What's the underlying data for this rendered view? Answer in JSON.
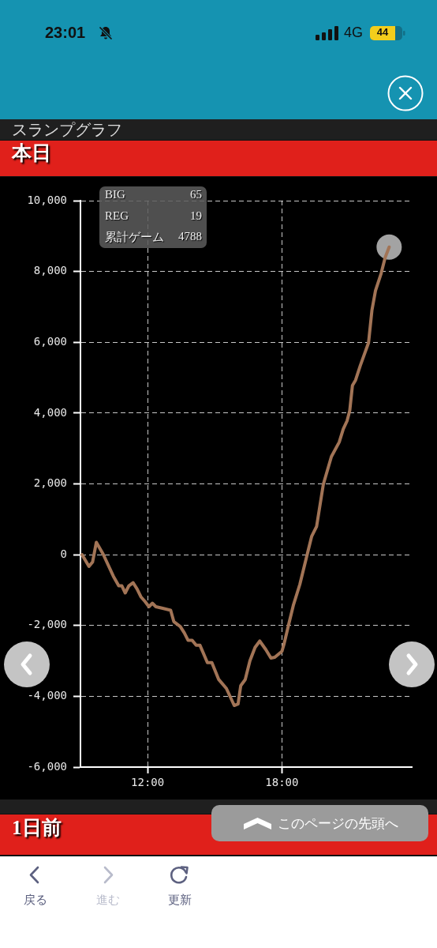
{
  "chart_data": {
    "type": "line",
    "title": "スランプグラフ",
    "subtitle": "本日",
    "xlim": [
      9,
      23.8
    ],
    "xticks": [
      {
        "value": 12,
        "label": "12:00"
      },
      {
        "value": 18,
        "label": "18:00"
      }
    ],
    "ylim": [
      -6000,
      10000
    ],
    "yticks": [
      {
        "value": -6000,
        "label": "-6,000"
      },
      {
        "value": -4000,
        "label": "-4,000"
      },
      {
        "value": -2000,
        "label": "-2,000"
      },
      0,
      {
        "value": 2000,
        "label": "2,000"
      },
      {
        "value": 4000,
        "label": "4,000"
      },
      {
        "value": 6000,
        "label": "6,000"
      },
      {
        "value": 8000,
        "label": "8,000"
      },
      {
        "value": 10000,
        "label": "10,000"
      }
    ],
    "grid": true,
    "series": [
      {
        "color": "#a27456",
        "x": [
          9.07,
          9.38,
          9.54,
          9.71,
          10.01,
          10.47,
          10.71,
          10.85,
          11.0,
          11.16,
          11.35,
          11.53,
          11.7,
          11.88,
          12.06,
          12.21,
          12.37,
          12.64,
          13.03,
          13.17,
          13.46,
          13.64,
          13.81,
          13.99,
          14.17,
          14.34,
          14.67,
          14.87,
          15.17,
          15.52,
          15.87,
          16.04,
          16.16,
          16.36,
          16.57,
          16.8,
          17.01,
          17.28,
          17.51,
          17.68,
          18.0,
          18.1,
          18.31,
          18.51,
          18.8,
          19.09,
          19.33,
          19.55,
          19.85,
          20.21,
          20.56,
          20.74,
          20.91,
          21.03,
          21.15,
          21.29,
          21.5,
          21.87,
          22.02,
          22.18,
          22.43,
          22.61,
          22.79
        ],
        "values": [
          0,
          -330,
          -210,
          350,
          20,
          -610,
          -880,
          -880,
          -1080,
          -880,
          -790,
          -970,
          -1190,
          -1320,
          -1470,
          -1370,
          -1470,
          -1510,
          -1570,
          -1890,
          -2030,
          -2210,
          -2420,
          -2420,
          -2560,
          -2560,
          -3050,
          -3050,
          -3520,
          -3780,
          -4260,
          -4220,
          -3700,
          -3530,
          -3000,
          -2620,
          -2440,
          -2680,
          -2920,
          -2900,
          -2730,
          -2510,
          -1950,
          -1430,
          -840,
          -90,
          520,
          800,
          1990,
          2770,
          3180,
          3550,
          3780,
          4070,
          4780,
          4930,
          5340,
          5990,
          6900,
          7460,
          7940,
          8390,
          8690
        ]
      },
      {
        "type": "scatter",
        "color": "#cccccc",
        "marker": "circle",
        "x": [
          22.79
        ],
        "values": [
          8690
        ]
      }
    ],
    "annotations": [
      "BIG",
      "65",
      "REG",
      "19",
      "累計ゲーム",
      "4788",
      "1日前",
      "このページの先頭へ",
      "戻る",
      "進む",
      "更新",
      "23:01",
      "4G",
      "44"
    ]
  }
}
